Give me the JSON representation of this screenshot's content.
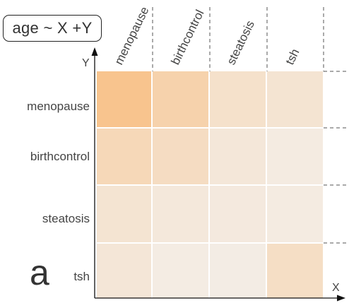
{
  "formula": "age ~ X +Y",
  "panel_label": "a",
  "chart_data": {
    "type": "heatmap",
    "x_axis_label": "X",
    "y_axis_label": "Y",
    "x_categories": [
      "menopause",
      "birthcontrol",
      "steatosis",
      "tsh"
    ],
    "y_categories": [
      "menopause",
      "birthcontrol",
      "steatosis",
      "tsh"
    ],
    "values": [
      [
        1.0,
        0.68,
        0.35,
        0.28
      ],
      [
        0.55,
        0.45,
        0.2,
        0.12
      ],
      [
        0.28,
        0.18,
        0.15,
        0.12
      ],
      [
        0.22,
        0.1,
        0.08,
        0.42
      ]
    ],
    "color_scale": {
      "low": "#f3f0ec",
      "high": "#f8c48e"
    },
    "grid": false,
    "legend": "none"
  }
}
